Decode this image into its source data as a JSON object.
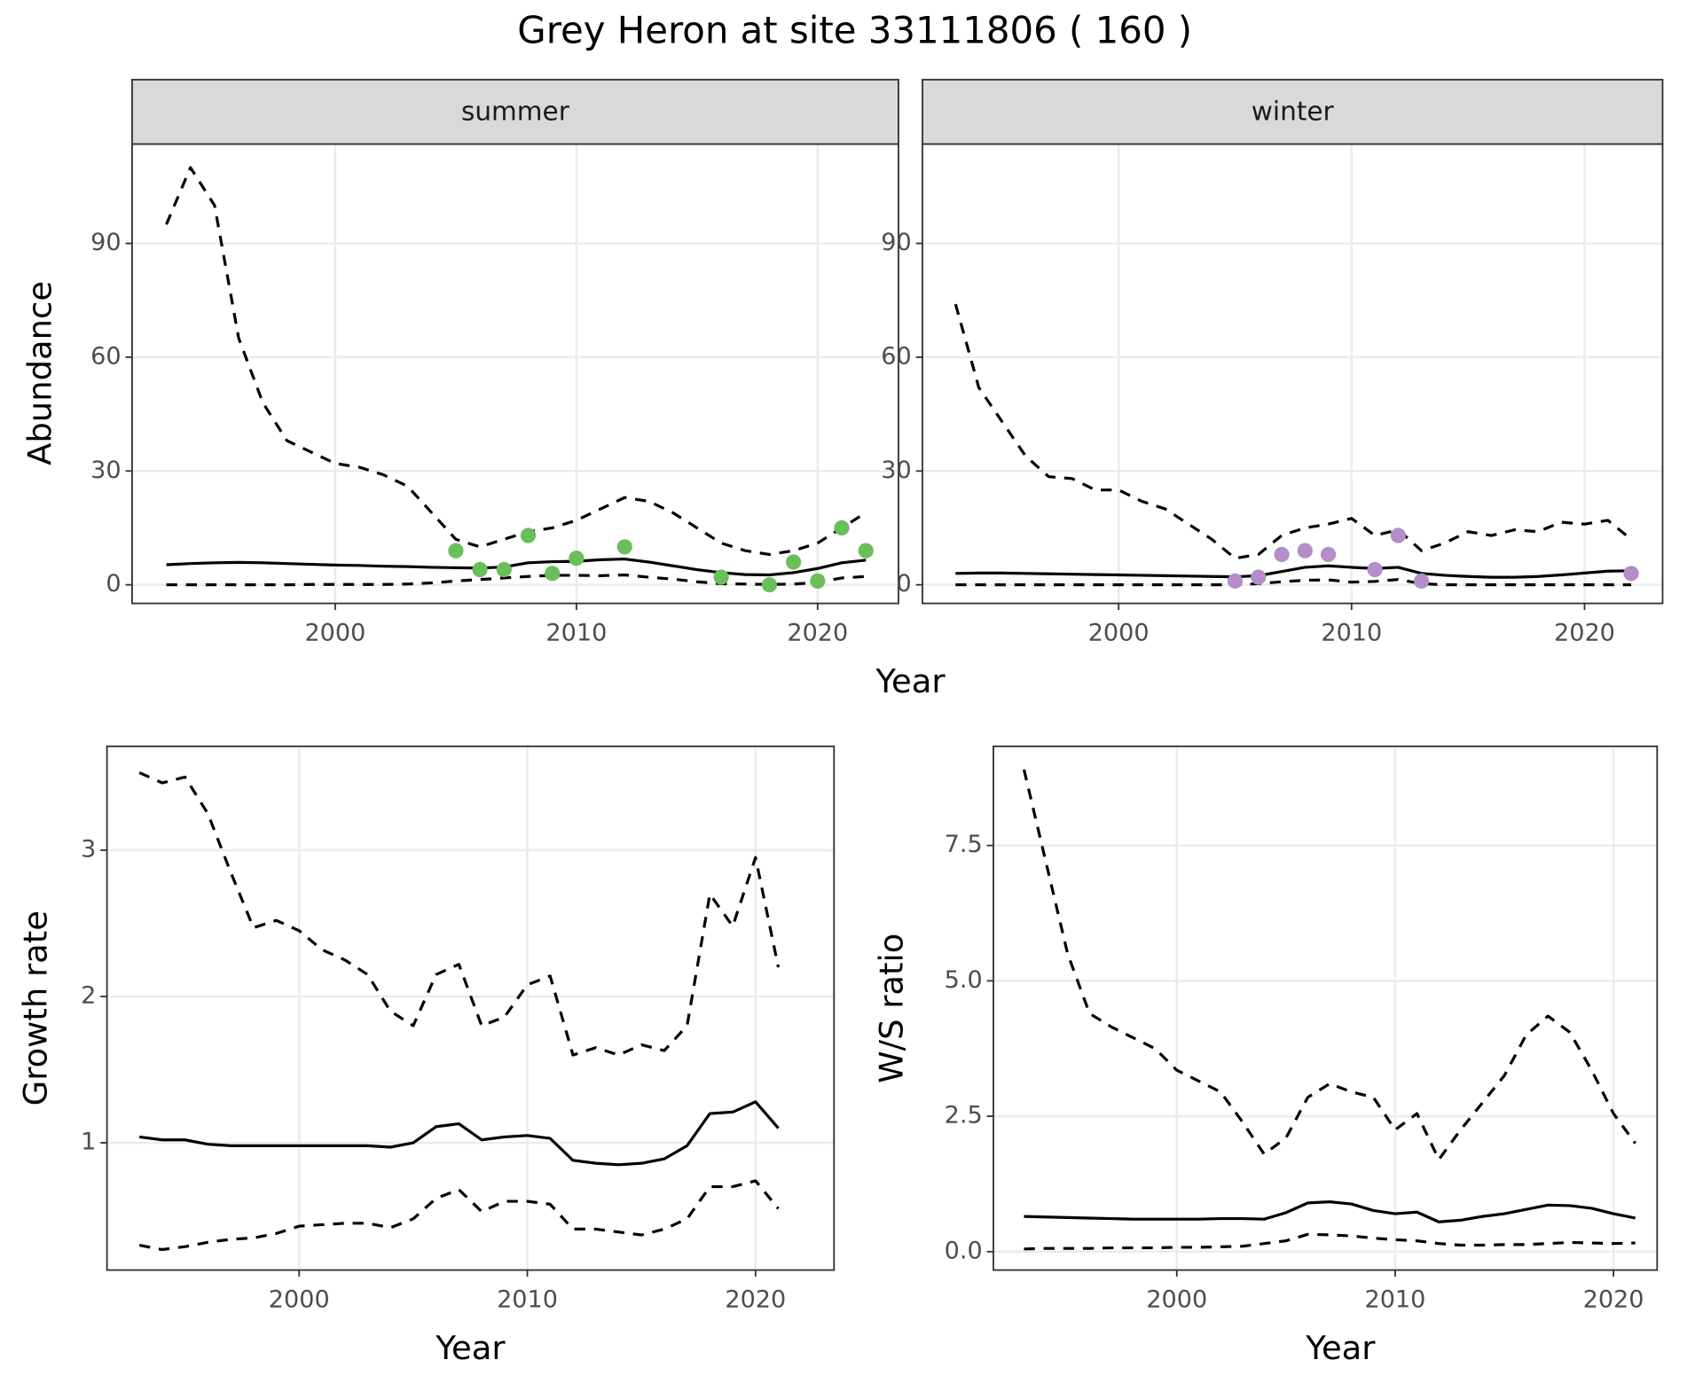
{
  "title": "Grey Heron at site 33111806 ( 160 )",
  "chart_data": [
    {
      "type": "line",
      "title": "summer",
      "ylabel": "Abundance",
      "xlabel": "Year",
      "grid": true,
      "xlim": [
        1991.58,
        2023.35
      ],
      "xticks": [
        2000,
        2010,
        2020
      ],
      "ylim": [
        -4.9,
        116.2
      ],
      "yticks": [
        0,
        30,
        60,
        90
      ],
      "x": [
        1993,
        1994,
        1995,
        1996,
        1997,
        1998,
        1999,
        2000,
        2001,
        2002,
        2003,
        2004,
        2005,
        2006,
        2007,
        2008,
        2009,
        2010,
        2011,
        2012,
        2013,
        2014,
        2015,
        2016,
        2017,
        2018,
        2019,
        2020,
        2021,
        2022
      ],
      "series": [
        {
          "style": "dashed",
          "color": "#000000",
          "values": [
            95,
            110,
            100,
            65,
            48,
            38,
            35,
            32,
            31,
            29,
            26,
            19,
            12,
            10,
            12,
            14,
            15,
            17,
            20,
            23,
            22,
            19,
            15,
            11,
            9,
            8,
            9,
            11,
            15,
            19
          ]
        },
        {
          "style": "solid",
          "color": "#000000",
          "values": [
            5.3,
            5.6,
            5.8,
            5.9,
            5.8,
            5.6,
            5.4,
            5.2,
            5.1,
            4.9,
            4.8,
            4.6,
            4.5,
            4.4,
            4.7,
            5.8,
            6.1,
            6.2,
            6.6,
            6.8,
            6,
            5,
            4,
            3.2,
            2.7,
            2.6,
            3.2,
            4.3,
            5.8,
            6.5
          ]
        },
        {
          "style": "dashed",
          "color": "#000000",
          "values": [
            0,
            0,
            0,
            0,
            0,
            0,
            0.1,
            0.1,
            0.1,
            0.1,
            0.2,
            0.5,
            1,
            1.4,
            1.8,
            2.2,
            2.5,
            2.5,
            2.4,
            2.6,
            2,
            1.5,
            0.8,
            0.3,
            0.2,
            0.1,
            0.2,
            0.6,
            1.8,
            2.2
          ]
        },
        {
          "style": "points",
          "color": "#6abf5b",
          "x": [
            2005,
            2006,
            2007,
            2008,
            2009,
            2010,
            2012,
            2016,
            2018,
            2019,
            2020,
            2021,
            2022
          ],
          "values": [
            9,
            4,
            4,
            13,
            3,
            7,
            10,
            2,
            0,
            6,
            1,
            15,
            9
          ]
        }
      ]
    },
    {
      "type": "line",
      "title": "winter",
      "grid": true,
      "xlim": [
        1991.58,
        2023.35
      ],
      "xticks": [
        2000,
        2010,
        2020
      ],
      "ylim": [
        -4.9,
        116.2
      ],
      "yticks": [
        0,
        30,
        60,
        90
      ],
      "x": [
        1993,
        1994,
        1995,
        1996,
        1997,
        1998,
        1999,
        2000,
        2001,
        2002,
        2003,
        2004,
        2005,
        2006,
        2007,
        2008,
        2009,
        2010,
        2011,
        2012,
        2013,
        2014,
        2015,
        2016,
        2017,
        2018,
        2019,
        2020,
        2021,
        2022
      ],
      "series": [
        {
          "style": "dashed",
          "color": "#000000",
          "values": [
            74,
            52,
            43,
            34,
            28.5,
            28,
            25,
            25,
            22,
            20,
            16,
            12,
            7,
            8,
            13,
            15,
            16,
            17.5,
            13,
            14.5,
            9,
            11,
            14,
            13,
            14.5,
            14,
            16.5,
            16,
            17,
            12
          ]
        },
        {
          "style": "solid",
          "color": "#000000",
          "values": [
            3,
            3.1,
            3.1,
            3,
            2.9,
            2.8,
            2.7,
            2.6,
            2.5,
            2.4,
            2.3,
            2.2,
            2.1,
            2.4,
            3.5,
            4.6,
            5,
            4.6,
            4.3,
            4.6,
            3,
            2.5,
            2.2,
            2,
            2,
            2.2,
            2.6,
            3.1,
            3.6,
            3.7
          ]
        },
        {
          "style": "dashed",
          "color": "#000000",
          "values": [
            0,
            0,
            0,
            0,
            0,
            0,
            0,
            0,
            0,
            0,
            0,
            0,
            0,
            0.3,
            0.8,
            1.2,
            1.3,
            0.7,
            0.9,
            1.4,
            0.3,
            0,
            0,
            0,
            0,
            0,
            0,
            0,
            0,
            0
          ]
        },
        {
          "style": "points",
          "color": "#b38ec8",
          "x": [
            2005,
            2006,
            2007,
            2008,
            2009,
            2011,
            2012,
            2013,
            2022
          ],
          "values": [
            1,
            2,
            8,
            9,
            8,
            4,
            13,
            1,
            3
          ]
        }
      ]
    },
    {
      "type": "line",
      "ylabel": "Growth rate",
      "xlabel": "Year",
      "grid": true,
      "xlim": [
        1991.58,
        2023.44
      ],
      "xticks": [
        2000,
        2010,
        2020
      ],
      "ylim": [
        0.13,
        3.71
      ],
      "yticks": [
        1,
        2,
        3
      ],
      "x": [
        1993,
        1994,
        1995,
        1996,
        1997,
        1998,
        1999,
        2000,
        2001,
        2002,
        2003,
        2004,
        2005,
        2006,
        2007,
        2008,
        2009,
        2010,
        2011,
        2012,
        2013,
        2014,
        2015,
        2016,
        2017,
        2018,
        2019,
        2020,
        2021
      ],
      "series": [
        {
          "style": "dashed",
          "color": "#000000",
          "values": [
            3.53,
            3.46,
            3.5,
            3.25,
            2.85,
            2.47,
            2.52,
            2.45,
            2.32,
            2.25,
            2.15,
            1.9,
            1.8,
            2.15,
            2.22,
            1.8,
            1.86,
            2.08,
            2.14,
            1.6,
            1.65,
            1.6,
            1.67,
            1.63,
            1.8,
            2.7,
            2.48,
            2.95,
            2.2
          ]
        },
        {
          "style": "solid",
          "color": "#000000",
          "values": [
            1.04,
            1.02,
            1.02,
            0.99,
            0.98,
            0.98,
            0.98,
            0.98,
            0.98,
            0.98,
            0.98,
            0.97,
            1,
            1.11,
            1.13,
            1.02,
            1.04,
            1.05,
            1.03,
            0.88,
            0.86,
            0.85,
            0.86,
            0.89,
            0.98,
            1.2,
            1.21,
            1.28,
            1.1
          ]
        },
        {
          "style": "dashed",
          "color": "#000000",
          "values": [
            0.3,
            0.27,
            0.29,
            0.32,
            0.34,
            0.35,
            0.38,
            0.43,
            0.44,
            0.45,
            0.45,
            0.42,
            0.48,
            0.62,
            0.68,
            0.53,
            0.6,
            0.6,
            0.58,
            0.41,
            0.41,
            0.39,
            0.37,
            0.41,
            0.48,
            0.7,
            0.7,
            0.74,
            0.55
          ]
        }
      ]
    },
    {
      "type": "line",
      "ylabel": "W/S ratio",
      "xlabel": "Year",
      "grid": true,
      "xlim": [
        1991.6,
        2022.0
      ],
      "xticks": [
        2000,
        2010,
        2020
      ],
      "ylim": [
        -0.34,
        9.33
      ],
      "yticks": [
        {
          "value": 0,
          "label": "0.0"
        },
        {
          "value": 2.5,
          "label": "2.5"
        },
        {
          "value": 5,
          "label": "5.0"
        },
        {
          "value": 7.5,
          "label": "7.5"
        }
      ],
      "x": [
        1993,
        1994,
        1995,
        1996,
        1997,
        1998,
        1999,
        2000,
        2001,
        2002,
        2003,
        2004,
        2005,
        2006,
        2007,
        2008,
        2009,
        2010,
        2011,
        2012,
        2013,
        2014,
        2015,
        2016,
        2017,
        2018,
        2019,
        2020,
        2021
      ],
      "series": [
        {
          "style": "dashed",
          "color": "#000000",
          "values": [
            8.9,
            7.2,
            5.5,
            4.4,
            4.15,
            3.95,
            3.75,
            3.35,
            3.15,
            2.95,
            2.4,
            1.8,
            2.1,
            2.85,
            3.1,
            2.95,
            2.85,
            2.25,
            2.55,
            1.7,
            2.25,
            2.75,
            3.25,
            4,
            4.35,
            4.05,
            3.35,
            2.55,
            2
          ]
        },
        {
          "style": "solid",
          "color": "#000000",
          "values": [
            0.65,
            0.64,
            0.63,
            0.62,
            0.61,
            0.6,
            0.6,
            0.6,
            0.6,
            0.61,
            0.61,
            0.6,
            0.72,
            0.9,
            0.92,
            0.88,
            0.76,
            0.7,
            0.73,
            0.55,
            0.58,
            0.65,
            0.7,
            0.78,
            0.86,
            0.85,
            0.8,
            0.7,
            0.62
          ]
        },
        {
          "style": "dashed",
          "color": "#000000",
          "values": [
            0.05,
            0.06,
            0.06,
            0.06,
            0.07,
            0.07,
            0.07,
            0.08,
            0.08,
            0.09,
            0.1,
            0.15,
            0.2,
            0.32,
            0.31,
            0.29,
            0.25,
            0.22,
            0.2,
            0.15,
            0.12,
            0.12,
            0.13,
            0.13,
            0.15,
            0.17,
            0.16,
            0.15,
            0.16
          ]
        }
      ]
    }
  ]
}
